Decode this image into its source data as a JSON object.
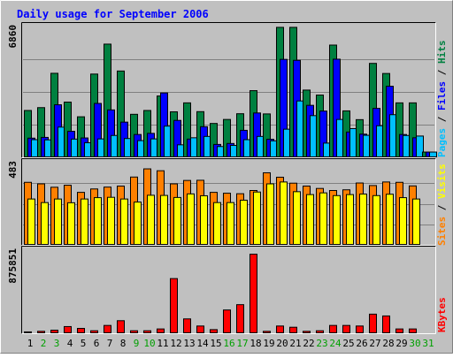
{
  "chart_data": {
    "type": "bar",
    "title": "Daily usage for September 2006",
    "categories": [
      "1",
      "2",
      "3",
      "4",
      "5",
      "6",
      "7",
      "8",
      "9",
      "10",
      "11",
      "12",
      "13",
      "14",
      "15",
      "16",
      "17",
      "18",
      "19",
      "20",
      "21",
      "22",
      "23",
      "24",
      "25",
      "26",
      "27",
      "28",
      "29",
      "30",
      "31"
    ],
    "weekend_days": [
      "2",
      "3",
      "9",
      "10",
      "16",
      "17",
      "23",
      "24",
      "30",
      "31"
    ],
    "panels": [
      {
        "name": "hits_files_pages",
        "ymax_label": "6860",
        "ymax": 6860,
        "right_label_parts": [
          "Pages",
          " / ",
          "Files",
          " / ",
          "Hits"
        ],
        "series": [
          {
            "name": "Hits",
            "color": "#008040",
            "values": [
              2480,
              2630,
              4430,
              2920,
              2150,
              4390,
              5960,
              4550,
              2280,
              2480,
              3240,
              2410,
              2880,
              2420,
              1800,
              2010,
              2310,
              3520,
              2300,
              6840,
              6840,
              3550,
              3290,
              5910,
              2460,
              2000,
              4950,
              4420,
              2880,
              2880,
              300
            ]
          },
          {
            "name": "Files",
            "color": "#0000ff",
            "values": [
              1030,
              1070,
              2780,
              1390,
              1040,
              2850,
              2510,
              1870,
              1220,
              1280,
              3400,
              1960,
              980,
              1630,
              700,
              750,
              1440,
              2350,
              970,
              5160,
              5110,
              2750,
              2450,
              5170,
              1350,
              1240,
              2590,
              3750,
              1220,
              1050,
              300
            ]
          },
          {
            "name": "Pages",
            "color": "#00bfff",
            "values": [
              950,
              940,
              1610,
              980,
              790,
              990,
              1170,
              1010,
              900,
              990,
              1660,
              680,
              1050,
              1120,
              590,
              650,
              950,
              1120,
              890,
              1500,
              2980,
              2210,
              770,
              2010,
              1530,
              1180,
              1680,
              2260,
              1170,
              1140,
              300
            ]
          }
        ]
      },
      {
        "name": "sites_visits",
        "ymax_label": "483",
        "ymax": 483,
        "right_label_parts": [
          "Sites",
          " / ",
          "Visits"
        ],
        "series": [
          {
            "name": "Visits",
            "color": "#ff8000",
            "values": [
              370,
              361,
              341,
              353,
              311,
              331,
              342,
              348,
              401,
              449,
              438,
              361,
              381,
              382,
              311,
              306,
              303,
              322,
              426,
              400,
              365,
              348,
              334,
              322,
              326,
              366,
              351,
              372,
              370,
              349,
              0
            ]
          },
          {
            "name": "Sites",
            "color": "#ffff00",
            "values": [
              272,
              251,
              272,
              250,
              272,
              280,
              282,
              272,
              254,
              294,
              293,
              281,
              302,
              291,
              251,
              251,
              265,
              313,
              361,
              372,
              315,
              298,
              308,
              292,
              298,
              301,
              292,
              300,
              280,
              272,
              0
            ]
          }
        ]
      },
      {
        "name": "kbytes",
        "ymax_label": "875851",
        "ymax": 875851,
        "right_label_parts": [
          "KBytes"
        ],
        "series": [
          {
            "name": "KBytes",
            "color": "#ff0000",
            "values": [
              19000,
              25000,
              37000,
              75000,
              56000,
              31000,
              87000,
              137000,
              31000,
              31000,
              50000,
              581000,
              156000,
              81000,
              43000,
              250000,
              306000,
              838000,
              25000,
              81000,
              68000,
              25000,
              31000,
              87000,
              87000,
              81000,
              206000,
              187000,
              50000,
              50000,
              0
            ]
          }
        ]
      }
    ]
  },
  "colors": {
    "background": "#c0c0c0",
    "title": "#0000ff",
    "weekday_label": "#000000",
    "weekend_label": "#00a000",
    "grid": "#808080"
  }
}
